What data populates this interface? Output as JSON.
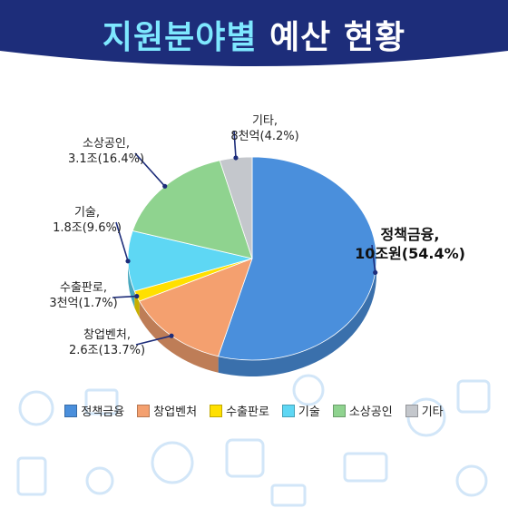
{
  "header": {
    "title_main": "지원분야별",
    "title_sub": "예산 현황"
  },
  "colors": {
    "banner": "#1d2d7a",
    "title_highlight": "#7ee8ff",
    "background_icons": "#cfe3f6"
  },
  "chart_data": {
    "type": "pie",
    "title": "지원분야별 예산 현황",
    "style": "3d",
    "legend_position": "bottom",
    "slices": [
      {
        "name": "정책금융",
        "label": "정책금융,",
        "value_label": "10조원(54.4%)",
        "percent": 54.4,
        "color": "#4a8fdc"
      },
      {
        "name": "창업벤처",
        "label": "창업벤처,",
        "value_label": "2.6조(13.7%)",
        "percent": 13.7,
        "color": "#f4a06f"
      },
      {
        "name": "수출판로",
        "label": "수출판로,",
        "value_label": "3천억(1.7%)",
        "percent": 1.7,
        "color": "#ffe000"
      },
      {
        "name": "기술",
        "label": "기술,",
        "value_label": "1.8조(9.6%)",
        "percent": 9.6,
        "color": "#5ed7f4"
      },
      {
        "name": "소상공인",
        "label": "소상공인,",
        "value_label": "3.1조(16.4%)",
        "percent": 16.4,
        "color": "#8fd38f"
      },
      {
        "name": "기타",
        "label": "기타,",
        "value_label": "8천억(4.2%)",
        "percent": 4.2,
        "color": "#c4c7cc"
      }
    ]
  }
}
